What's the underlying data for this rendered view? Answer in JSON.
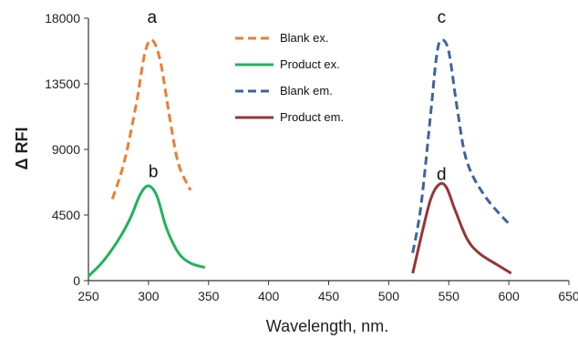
{
  "chart_data": {
    "type": "line",
    "xlabel": "Wavelength, nm.",
    "ylabel": "Δ RFI",
    "xlim": [
      250,
      650
    ],
    "ylim": [
      0,
      18000
    ],
    "x_ticks": [
      250,
      300,
      350,
      400,
      450,
      500,
      550,
      600,
      650
    ],
    "y_ticks": [
      0,
      4500,
      9000,
      13500,
      18000
    ],
    "grid": false,
    "legend_position": "top-center",
    "series": [
      {
        "name": "Blank ex.",
        "color": "#ED7D31",
        "dash": "dashed",
        "points": [
          [
            270,
            5600
          ],
          [
            280,
            8200
          ],
          [
            290,
            12200
          ],
          [
            297,
            15600
          ],
          [
            303,
            16500
          ],
          [
            310,
            15000
          ],
          [
            318,
            11000
          ],
          [
            325,
            8000
          ],
          [
            335,
            6200
          ]
        ]
      },
      {
        "name": "Product ex.",
        "color": "#20B35A",
        "dash": "solid",
        "points": [
          [
            250,
            300
          ],
          [
            262,
            1300
          ],
          [
            275,
            2800
          ],
          [
            285,
            4300
          ],
          [
            293,
            5900
          ],
          [
            300,
            6500
          ],
          [
            307,
            5800
          ],
          [
            315,
            3600
          ],
          [
            325,
            1900
          ],
          [
            335,
            1200
          ],
          [
            347,
            900
          ]
        ]
      },
      {
        "name": "Blank em.",
        "color": "#3C64A0",
        "dash": "dashed",
        "points": [
          [
            520,
            1900
          ],
          [
            527,
            5200
          ],
          [
            535,
            11500
          ],
          [
            540,
            15500
          ],
          [
            544,
            16500
          ],
          [
            550,
            15700
          ],
          [
            557,
            11800
          ],
          [
            565,
            8200
          ],
          [
            580,
            5800
          ],
          [
            600,
            3900
          ]
        ]
      },
      {
        "name": "Product em.",
        "color": "#943634",
        "dash": "solid",
        "points": [
          [
            520,
            500
          ],
          [
            527,
            3000
          ],
          [
            535,
            5600
          ],
          [
            542,
            6600
          ],
          [
            548,
            6400
          ],
          [
            555,
            4900
          ],
          [
            565,
            2900
          ],
          [
            575,
            1900
          ],
          [
            590,
            1100
          ],
          [
            602,
            500
          ]
        ]
      }
    ],
    "annotations": [
      {
        "text": "a",
        "x": 303,
        "y": 17700
      },
      {
        "text": "b",
        "x": 304,
        "y": 7100
      },
      {
        "text": "c",
        "x": 544,
        "y": 17700
      },
      {
        "text": "d",
        "x": 544,
        "y": 6900
      }
    ]
  }
}
